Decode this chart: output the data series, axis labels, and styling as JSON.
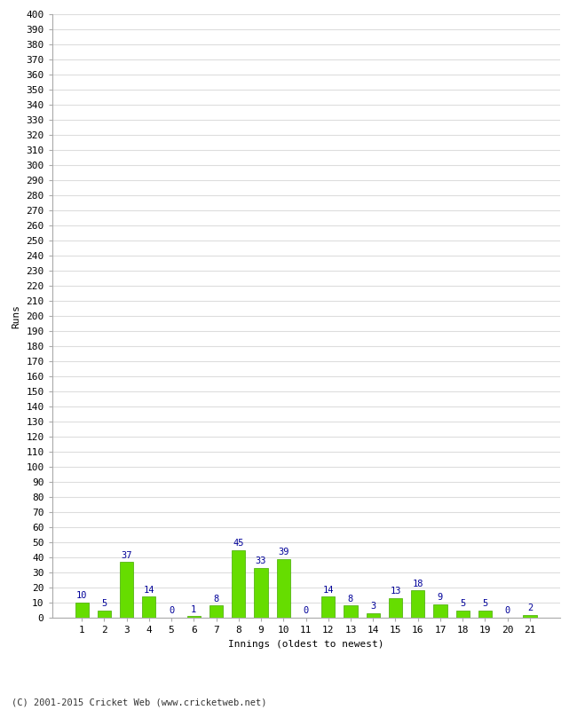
{
  "innings": [
    1,
    2,
    3,
    4,
    5,
    6,
    7,
    8,
    9,
    10,
    11,
    12,
    13,
    14,
    15,
    16,
    17,
    18,
    19,
    20,
    21
  ],
  "runs": [
    10,
    5,
    37,
    14,
    0,
    1,
    8,
    45,
    33,
    39,
    0,
    14,
    8,
    3,
    13,
    18,
    9,
    5,
    5,
    0,
    2
  ],
  "bar_color": "#66dd00",
  "bar_edge_color": "#44aa00",
  "label_color": "#000099",
  "ylabel": "Runs",
  "xlabel": "Innings (oldest to newest)",
  "ylim": [
    0,
    400
  ],
  "ytick_step": 10,
  "footer": "(C) 2001-2015 Cricket Web (www.cricketweb.net)",
  "background_color": "#ffffff",
  "grid_color": "#dddddd",
  "label_fontsize": 7.5,
  "axis_fontsize": 8,
  "footer_fontsize": 7.5,
  "ylabel_fontsize": 8
}
